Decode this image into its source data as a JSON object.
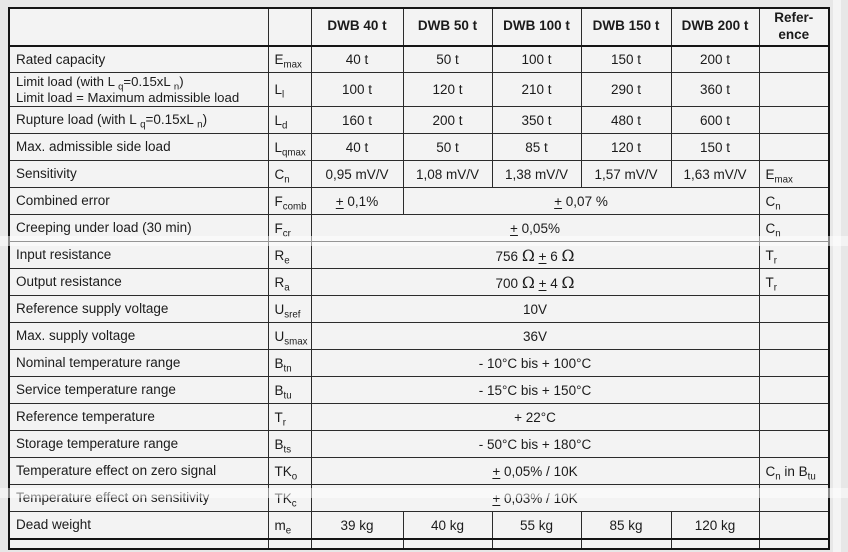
{
  "table": {
    "header": [
      "",
      "",
      "DWB 40 t",
      "DWB 50 t",
      "DWB 100 t",
      "DWB 150 t",
      "DWB 200 t",
      "Refer-\nence"
    ],
    "rows": [
      {
        "label": "Rated capacity",
        "symbol": "E_{max}",
        "cells": [
          {
            "text": "40 t",
            "span": 1
          },
          {
            "text": "50 t",
            "span": 1
          },
          {
            "text": "100 t",
            "span": 1
          },
          {
            "text": "150 t",
            "span": 1
          },
          {
            "text": "200 t",
            "span": 1
          }
        ],
        "ref": ""
      },
      {
        "label": "Limit load (with L _{q}=0.15xL _{n})\nLimit load = Maximum admissible load",
        "symbol": "L_{l}",
        "cells": [
          {
            "text": "100 t",
            "span": 1
          },
          {
            "text": "120 t",
            "span": 1
          },
          {
            "text": "210 t",
            "span": 1
          },
          {
            "text": "290 t",
            "span": 1
          },
          {
            "text": "360 t",
            "span": 1
          }
        ],
        "ref": ""
      },
      {
        "label": "Rupture load (with L _{q}=0.15xL _{n})",
        "symbol": "L_{d}",
        "cells": [
          {
            "text": "160 t",
            "span": 1
          },
          {
            "text": "200 t",
            "span": 1
          },
          {
            "text": "350 t",
            "span": 1
          },
          {
            "text": "480 t",
            "span": 1
          },
          {
            "text": "600 t",
            "span": 1
          }
        ],
        "ref": ""
      },
      {
        "label": "Max. admissible side load",
        "symbol": "L_{qmax}",
        "cells": [
          {
            "text": "40 t",
            "span": 1
          },
          {
            "text": "50 t",
            "span": 1
          },
          {
            "text": "85 t",
            "span": 1
          },
          {
            "text": "120 t",
            "span": 1
          },
          {
            "text": "150 t",
            "span": 1
          }
        ],
        "ref": ""
      },
      {
        "label": "Sensitivity",
        "symbol": "C_{n}",
        "cells": [
          {
            "text": "0,95 mV/V",
            "span": 1
          },
          {
            "text": "1,08 mV/V",
            "span": 1
          },
          {
            "text": "1,38 mV/V",
            "span": 1
          },
          {
            "text": "1,57 mV/V",
            "span": 1
          },
          {
            "text": "1,63 mV/V",
            "span": 1
          }
        ],
        "ref": "E_{max}"
      },
      {
        "label": "Combined error",
        "symbol": "F_{comb}",
        "cells": [
          {
            "text": "± 0,1%",
            "span": 1
          },
          {
            "text": "± 0,07 %",
            "span": 4
          }
        ],
        "ref": "C_{n}"
      },
      {
        "label": "Creeping under load (30 min)",
        "symbol": "F_{cr}",
        "cells": [
          {
            "text": "± 0,05%",
            "span": 5
          }
        ],
        "ref": "C_{n}"
      },
      {
        "label": "Input resistance",
        "symbol": "R_{e}",
        "cells": [
          {
            "text": "756 Ω ± 6 Ω",
            "span": 5
          }
        ],
        "ref": "T_{r}",
        "faintTop": true
      },
      {
        "label": "Output resistance",
        "symbol": "R_{a}",
        "cells": [
          {
            "text": "700 Ω ± 4 Ω",
            "span": 5
          }
        ],
        "ref": "T_{r}"
      },
      {
        "label": "Reference supply voltage",
        "symbol": "U_{sref}",
        "cells": [
          {
            "text": "10V",
            "span": 5
          }
        ],
        "ref": ""
      },
      {
        "label": "Max. supply voltage",
        "symbol": "U_{smax}",
        "cells": [
          {
            "text": "36V",
            "span": 5
          }
        ],
        "ref": ""
      },
      {
        "label": "Nominal temperature range",
        "symbol": "B_{tn}",
        "cells": [
          {
            "text": "- 10°C bis + 100°C",
            "span": 5
          }
        ],
        "ref": ""
      },
      {
        "label": "Service temperature range",
        "symbol": "B_{tu}",
        "cells": [
          {
            "text": "- 15°C bis + 150°C",
            "span": 5
          }
        ],
        "ref": ""
      },
      {
        "label": "Reference temperature",
        "symbol": "T_{r}",
        "cells": [
          {
            "text": "+ 22°C",
            "span": 5
          }
        ],
        "ref": ""
      },
      {
        "label": "Storage temperature range",
        "symbol": "B_{ts}",
        "cells": [
          {
            "text": "- 50°C bis + 180°C",
            "span": 5
          }
        ],
        "ref": ""
      },
      {
        "label": "Temperature effect on zero signal",
        "symbol": "TK_{o}",
        "cells": [
          {
            "text": "± 0,05% / 10K",
            "span": 5
          }
        ],
        "ref": "C_{n} in B_{tu}"
      },
      {
        "label": "Temperature effect on sensitivity",
        "symbol": "TK_{c}",
        "cells": [
          {
            "text": "± 0,03% / 10K",
            "span": 5
          }
        ],
        "ref": "",
        "faintTop": true
      },
      {
        "label": "Dead weight",
        "symbol": "m_{e}",
        "cells": [
          {
            "text": "39 kg",
            "span": 1
          },
          {
            "text": "40 kg",
            "span": 1
          },
          {
            "text": "55 kg",
            "span": 1
          },
          {
            "text": "85 kg",
            "span": 1
          },
          {
            "text": "120 kg",
            "span": 1
          }
        ],
        "ref": ""
      }
    ]
  },
  "colors": {
    "page_bg": "#e7e7e7",
    "cell_bg": "#f3f3f3",
    "border": "#2b2b2b",
    "outer_border": "#141414",
    "text": "#1b1b1b"
  }
}
